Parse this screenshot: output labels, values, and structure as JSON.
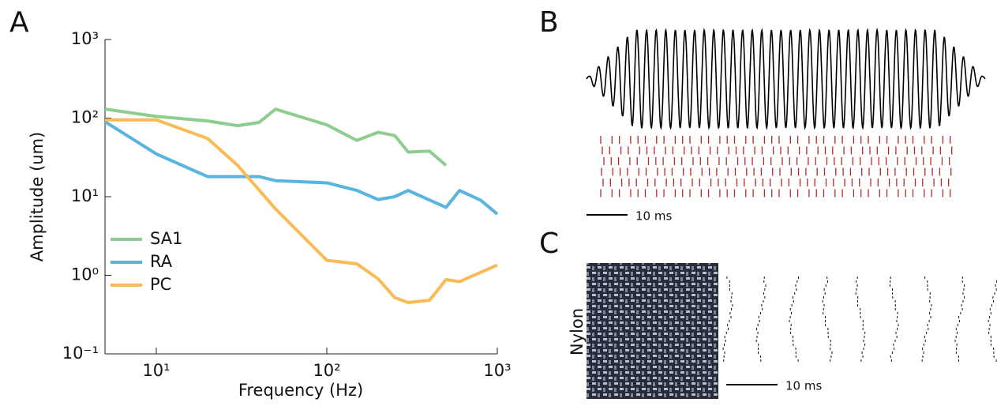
{
  "chart_data": {
    "type": "line",
    "xlabel": "Frequency (Hz)",
    "ylabel": "Amplitude (um)",
    "xscale": "log",
    "yscale": "log",
    "xlim": [
      5,
      1000
    ],
    "ylim": [
      0.1,
      1000
    ],
    "xticks": [
      {
        "value": 10,
        "label": "10¹"
      },
      {
        "value": 100,
        "label": "10²"
      },
      {
        "value": 1000,
        "label": "10³"
      }
    ],
    "yticks": [
      {
        "value": 0.1,
        "label": "10⁻¹"
      },
      {
        "value": 1,
        "label": "10⁰"
      },
      {
        "value": 10,
        "label": "10¹"
      },
      {
        "value": 100,
        "label": "10²"
      },
      {
        "value": 1000,
        "label": "10³"
      }
    ],
    "legend": "left",
    "series": [
      {
        "name": "SA1",
        "color": "#8fcc8f",
        "x": [
          5,
          10,
          20,
          30,
          40,
          50,
          100,
          150,
          200,
          250,
          300,
          400,
          500
        ],
        "values": [
          130,
          105,
          92,
          80,
          88,
          130,
          82,
          52,
          66,
          60,
          37,
          38,
          25
        ]
      },
      {
        "name": "RA",
        "color": "#5ab4e0",
        "x": [
          5,
          10,
          20,
          40,
          50,
          100,
          150,
          200,
          250,
          300,
          500,
          600,
          800,
          1000
        ],
        "values": [
          90,
          35,
          18,
          18,
          16,
          15,
          12,
          9.2,
          10,
          12,
          7.3,
          12,
          9,
          6
        ]
      },
      {
        "name": "PC",
        "color": "#f8bb55",
        "x": [
          5,
          10,
          20,
          30,
          50,
          100,
          150,
          200,
          250,
          300,
          400,
          500,
          600,
          1000
        ],
        "values": [
          95,
          95,
          55,
          25,
          7,
          1.55,
          1.4,
          0.9,
          0.52,
          0.45,
          0.48,
          0.88,
          0.83,
          1.35
        ]
      }
    ]
  },
  "panel_labels": [
    "A",
    "B",
    "C"
  ],
  "annotations": {
    "b_scale": "10 ms",
    "c_scale": "10 ms",
    "c_label": "Nylon"
  }
}
